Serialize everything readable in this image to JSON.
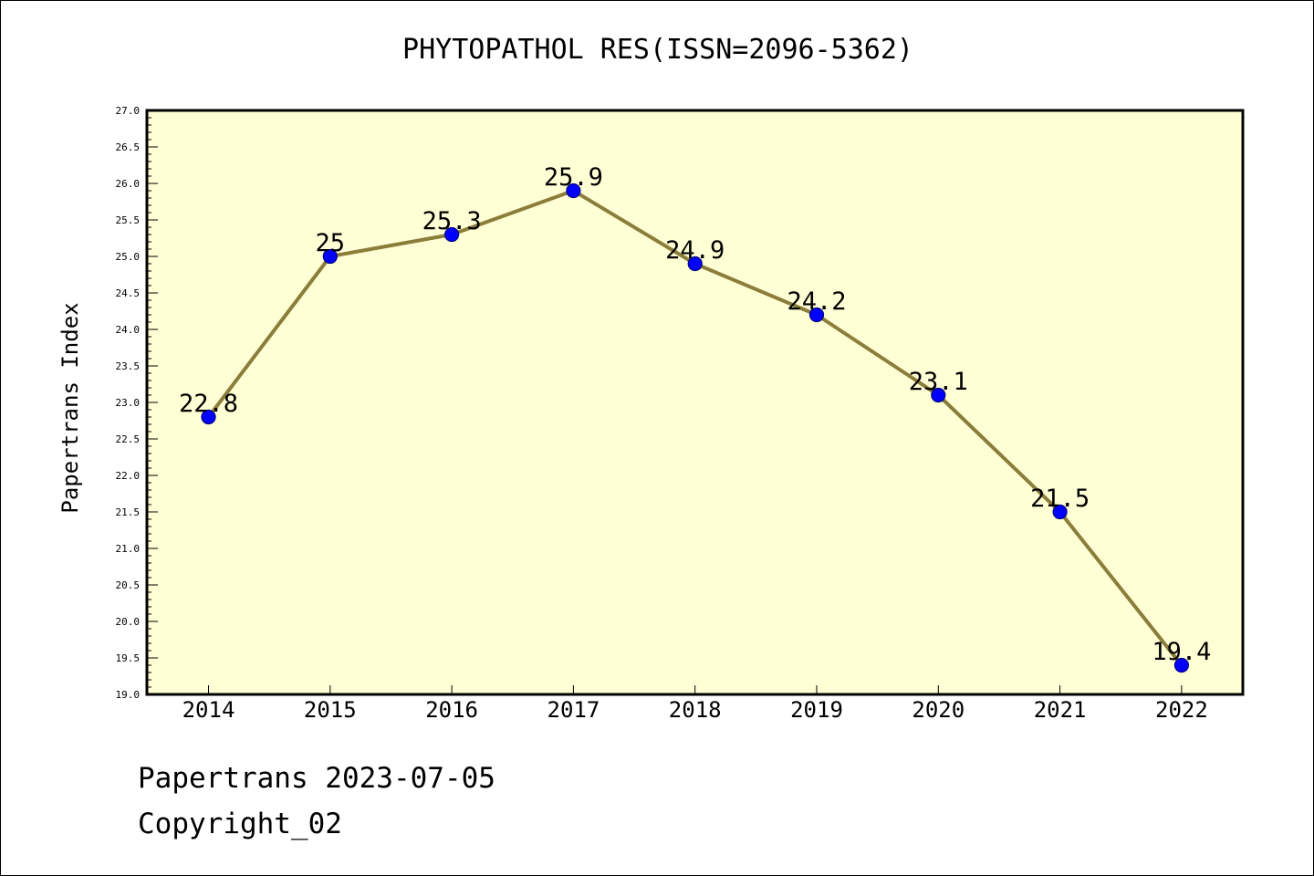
{
  "chart_data": {
    "type": "line",
    "title": "PHYTOPATHOL RES(ISSN=2096-5362)",
    "ylabel": "Papertrans Index",
    "xlabel": "",
    "categories": [
      "2014",
      "2015",
      "2016",
      "2017",
      "2018",
      "2019",
      "2020",
      "2021",
      "2022"
    ],
    "series": [
      {
        "values": [
          22.8,
          25,
          25.3,
          25.9,
          24.9,
          24.2,
          23.1,
          21.5,
          19.4
        ]
      }
    ],
    "data_labels": [
      "22.8",
      "25",
      "25.3",
      "25.9",
      "24.9",
      "24.2",
      "23.1",
      "21.5",
      "19.4"
    ],
    "ylim": [
      19.0,
      27.0
    ],
    "yticks": [
      "19.0",
      "19.5",
      "20.0",
      "20.5",
      "21.0",
      "21.5",
      "22.0",
      "22.5",
      "23.0",
      "23.5",
      "24.0",
      "24.5",
      "25.0",
      "25.5",
      "26.0",
      "26.5",
      "27.0"
    ],
    "grid": false,
    "legend": "none"
  },
  "footer": {
    "date_line": "Papertrans 2023-07-05",
    "copyright": "Copyright_02"
  },
  "colors": {
    "plot_background": "#ffffd5",
    "line": "#8b7d3a",
    "marker": "#0000ff",
    "marker_edge": "#000080"
  }
}
